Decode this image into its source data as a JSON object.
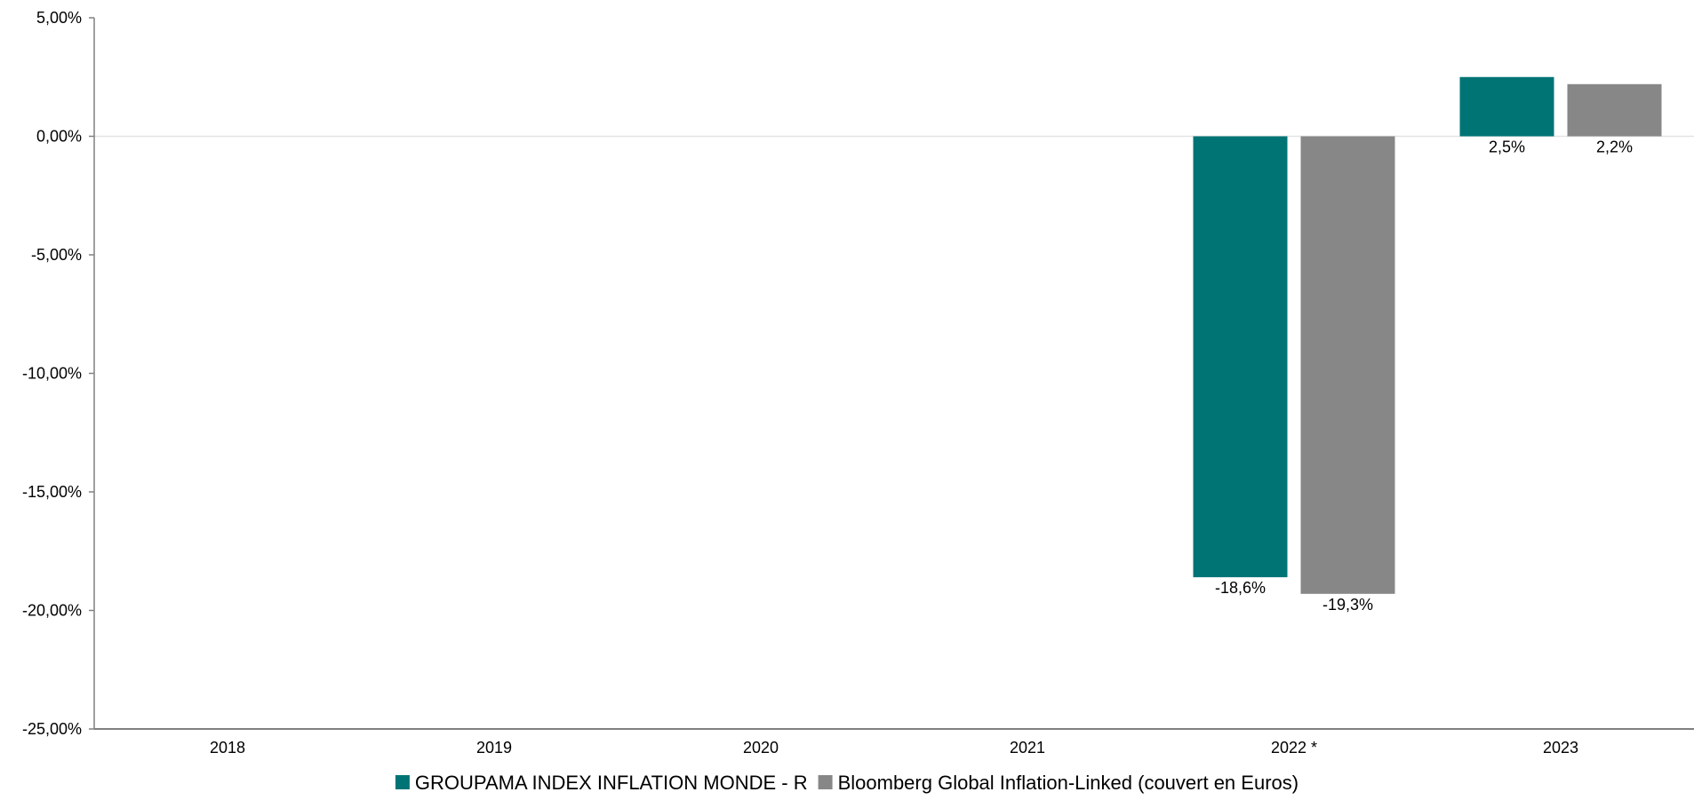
{
  "chart_data": {
    "type": "bar",
    "title": "",
    "xlabel": "",
    "ylabel": "",
    "categories": [
      "2018",
      "2019",
      "2020",
      "2021",
      "2022 *",
      "2023"
    ],
    "series": [
      {
        "name": "GROUPAMA INDEX INFLATION MONDE - R",
        "color": "#007475",
        "values": [
          null,
          null,
          null,
          null,
          -18.6,
          2.5
        ],
        "labels": [
          "",
          "",
          "",
          "",
          "-18,6%",
          "2,5%"
        ]
      },
      {
        "name": "Bloomberg Global Inflation-Linked (couvert en Euros)",
        "color": "#878787",
        "values": [
          null,
          null,
          null,
          null,
          -19.3,
          2.2
        ],
        "labels": [
          "",
          "",
          "",
          "",
          "-19,3%",
          "2,2%"
        ]
      }
    ],
    "ylim": [
      -25,
      5
    ],
    "yticks": [
      5,
      0,
      -5,
      -10,
      -15,
      -20,
      -25
    ],
    "ytick_labels": [
      "5,00%",
      "0,00%",
      "-5,00%",
      "-10,00%",
      "-15,00%",
      "-20,00%",
      "-25,00%"
    ],
    "grid": false,
    "zero_line": true,
    "legend_position": "bottom-center"
  }
}
